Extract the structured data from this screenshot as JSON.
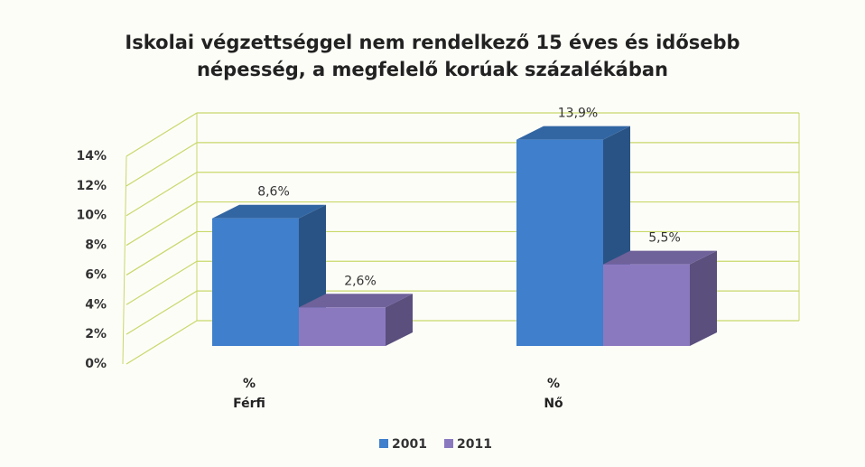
{
  "chart_data": {
    "type": "bar3d",
    "title": "Iskolai végzettséggel nem rendelkező 15 éves és idősebb\nnépesség, a megfelelő korúak százalékában",
    "categories": [
      "%\nFérfi",
      "%\nNő"
    ],
    "series": [
      {
        "name": "2001",
        "color": "#3f7fcc",
        "values": [
          8.6,
          13.9
        ],
        "value_labels": [
          "8,6%",
          "13,9%"
        ]
      },
      {
        "name": "2011",
        "color": "#8b79c0",
        "values": [
          2.6,
          5.5
        ],
        "value_labels": [
          "2,6%",
          "5,5%"
        ]
      }
    ],
    "ylim": [
      0,
      14
    ],
    "yticks": [
      {
        "value": 0,
        "label": "0%"
      },
      {
        "value": 2,
        "label": "2%"
      },
      {
        "value": 4,
        "label": "4%"
      },
      {
        "value": 6,
        "label": "6%"
      },
      {
        "value": 8,
        "label": "8%"
      },
      {
        "value": 10,
        "label": "10%"
      },
      {
        "value": 12,
        "label": "12%"
      },
      {
        "value": 14,
        "label": "14%"
      }
    ],
    "grid": true,
    "legend": "bottom"
  }
}
